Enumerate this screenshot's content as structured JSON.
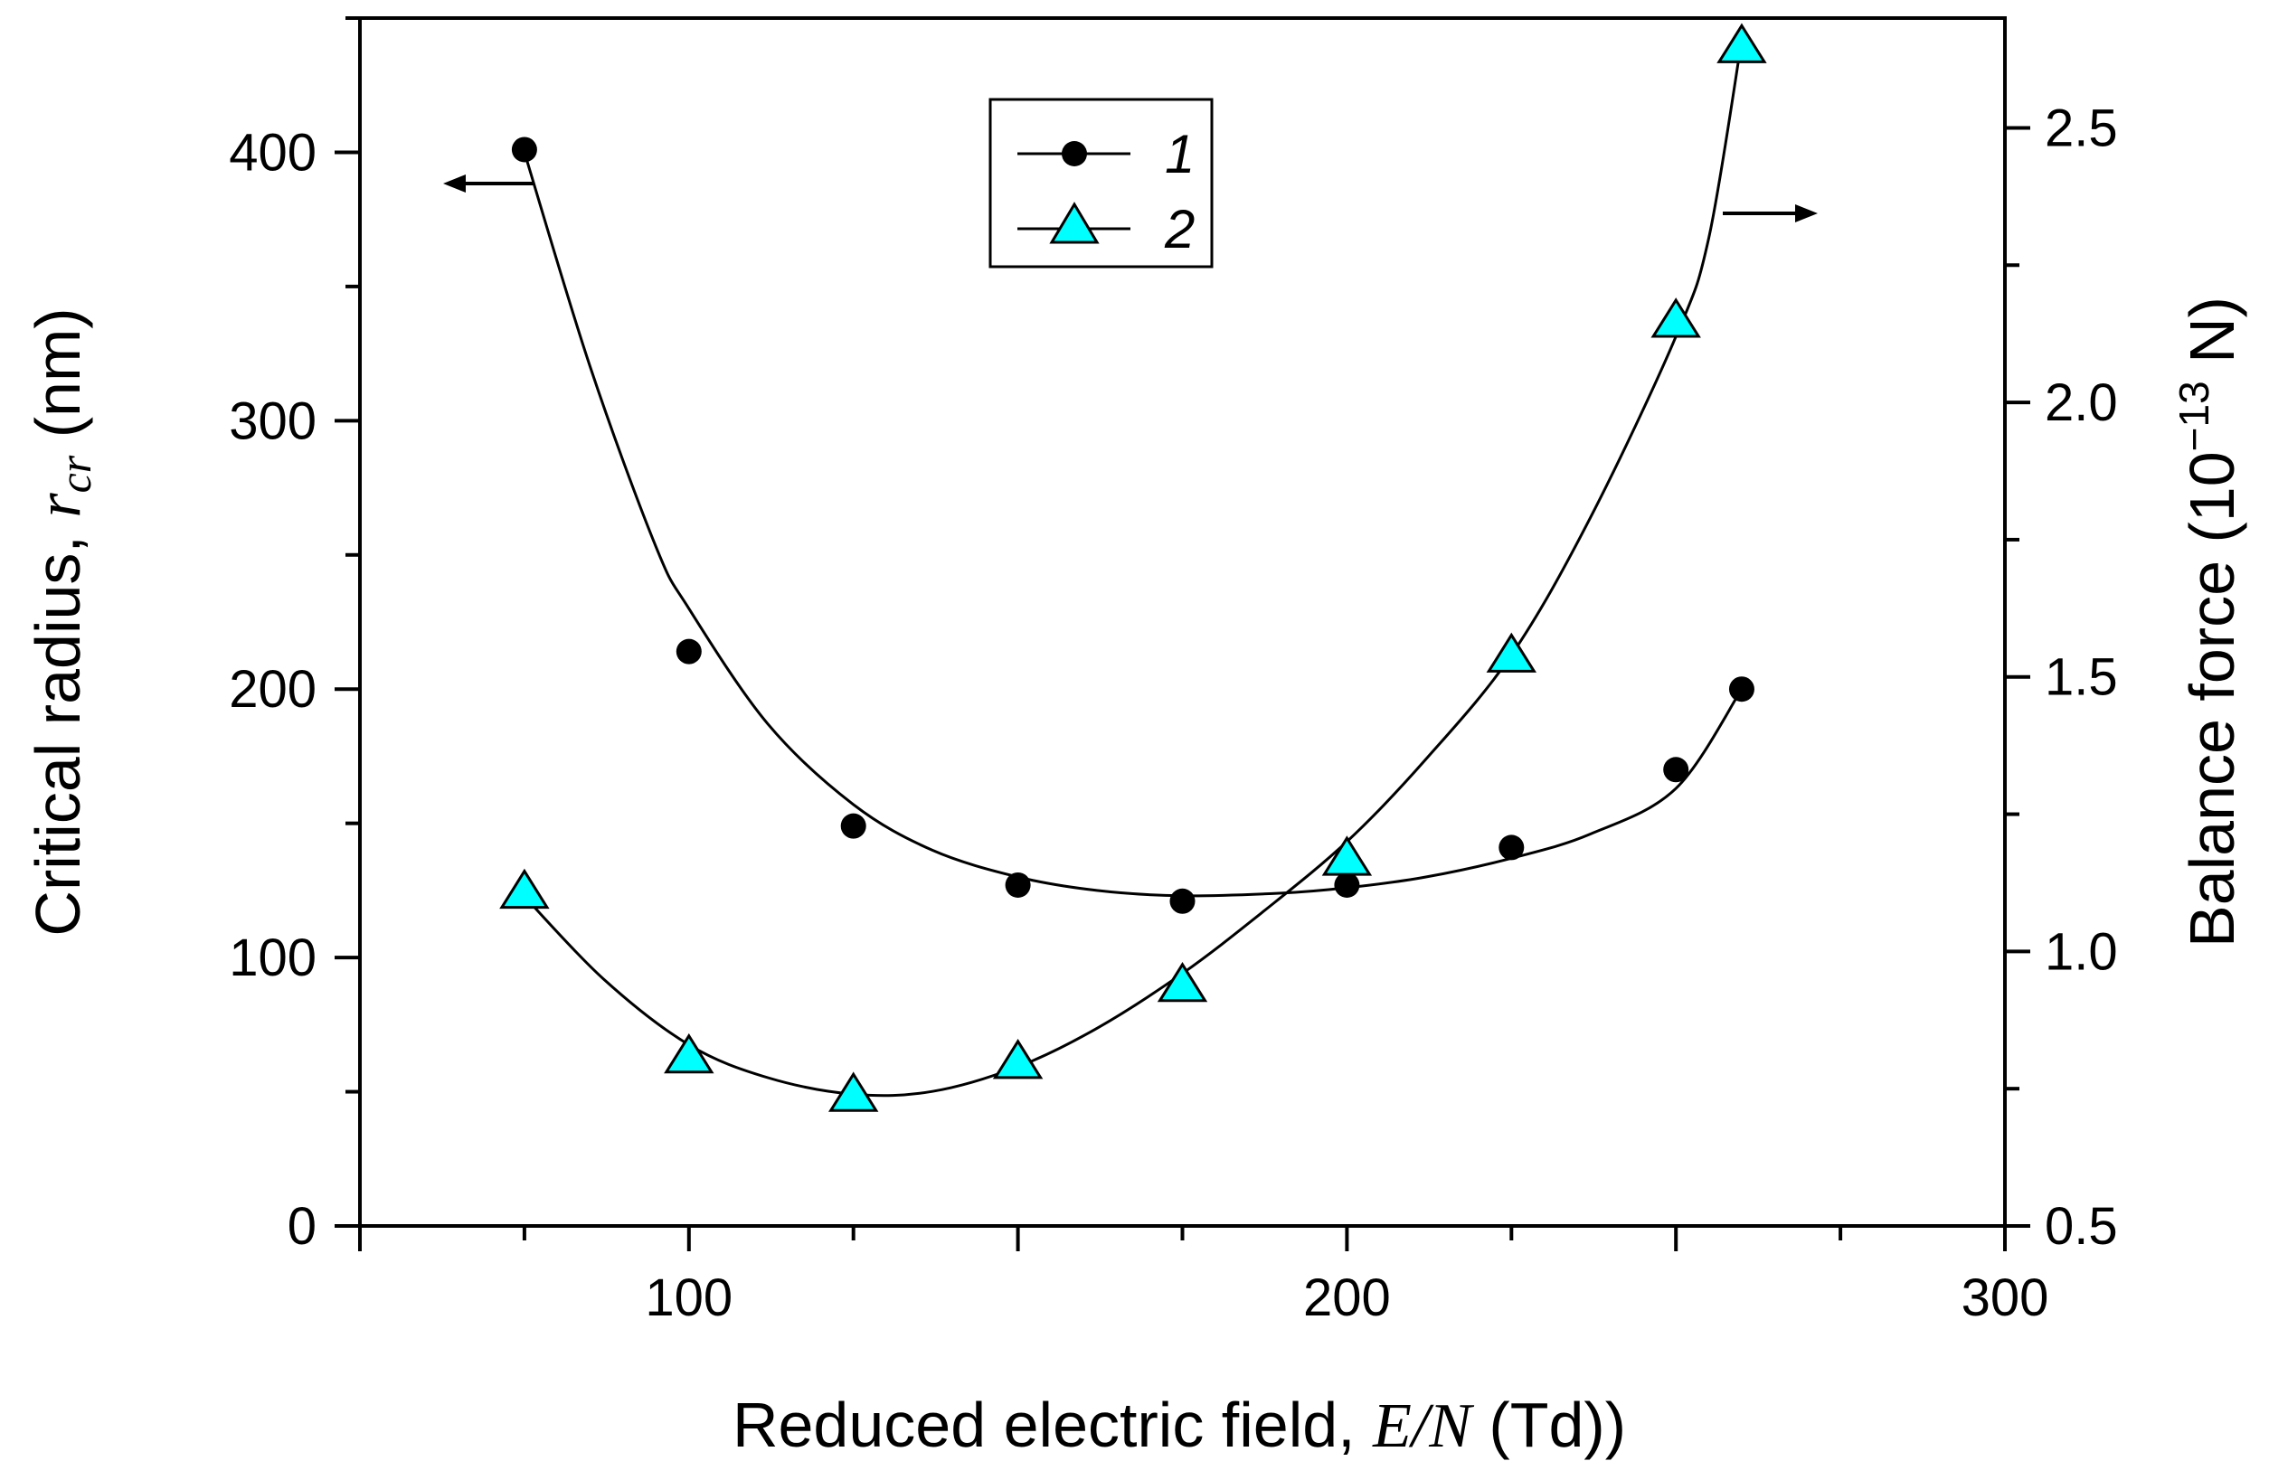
{
  "chart_data": {
    "type": "scatter",
    "x": [
      75,
      100,
      125,
      150,
      175,
      200,
      225,
      250,
      260
    ],
    "xlabel": {
      "prefix": "Reduced electric field, ",
      "math": "E/N",
      "suffix": " (Td))"
    },
    "ylabel_left": {
      "prefix": "Critical radius, ",
      "math": "r",
      "math_sub": "cr",
      "suffix": " (nm)"
    },
    "ylabel_right": {
      "prefix": "Balance force (10",
      "sup": "−13",
      "suffix": " N)"
    },
    "xlim": [
      50,
      300
    ],
    "ylim_left": [
      0,
      450
    ],
    "ylim_right": [
      0.5,
      2.7
    ],
    "x_ticks": [
      "100",
      "200",
      "300"
    ],
    "y_left_ticks": [
      "0",
      "100",
      "200",
      "300",
      "400"
    ],
    "y_right_ticks": [
      "0.5",
      "1.0",
      "1.5",
      "2.0",
      "2.5"
    ],
    "series": [
      {
        "name": "1",
        "axis": "left",
        "marker": "circle",
        "color": "#000000",
        "x": [
          75,
          100,
          125,
          150,
          175,
          200,
          225,
          250,
          260
        ],
        "values": [
          401,
          214,
          149,
          127,
          121,
          127,
          141,
          170,
          200
        ],
        "fit": [
          [
            75,
            400
          ],
          [
            85,
            320
          ],
          [
            95,
            253
          ],
          [
            100,
            230
          ],
          [
            112,
            187
          ],
          [
            125,
            157
          ],
          [
            137,
            140
          ],
          [
            150,
            130
          ],
          [
            162,
            125
          ],
          [
            175,
            123
          ],
          [
            190,
            124
          ],
          [
            200,
            126
          ],
          [
            212,
            130
          ],
          [
            225,
            137
          ],
          [
            237,
            146
          ],
          [
            250,
            163
          ],
          [
            260,
            200
          ]
        ]
      },
      {
        "name": "2",
        "axis": "right",
        "marker": "triangle",
        "color": "#00FFFF",
        "x": [
          75,
          100,
          125,
          150,
          175,
          200,
          225,
          250,
          260
        ],
        "values": [
          1.11,
          0.81,
          0.74,
          0.8,
          0.94,
          1.17,
          1.54,
          2.15,
          2.65
        ],
        "fit": [
          [
            75,
            1.1
          ],
          [
            87,
            0.95
          ],
          [
            100,
            0.83
          ],
          [
            112,
            0.77
          ],
          [
            125,
            0.74
          ],
          [
            137,
            0.745
          ],
          [
            150,
            0.79
          ],
          [
            162,
            0.86
          ],
          [
            175,
            0.96
          ],
          [
            187,
            1.07
          ],
          [
            200,
            1.2
          ],
          [
            212,
            1.35
          ],
          [
            225,
            1.54
          ],
          [
            237,
            1.79
          ],
          [
            250,
            2.12
          ],
          [
            255,
            2.3
          ],
          [
            260,
            2.66
          ]
        ]
      }
    ],
    "legend": {
      "position": "top-center",
      "entries": [
        "1",
        "2"
      ]
    }
  }
}
